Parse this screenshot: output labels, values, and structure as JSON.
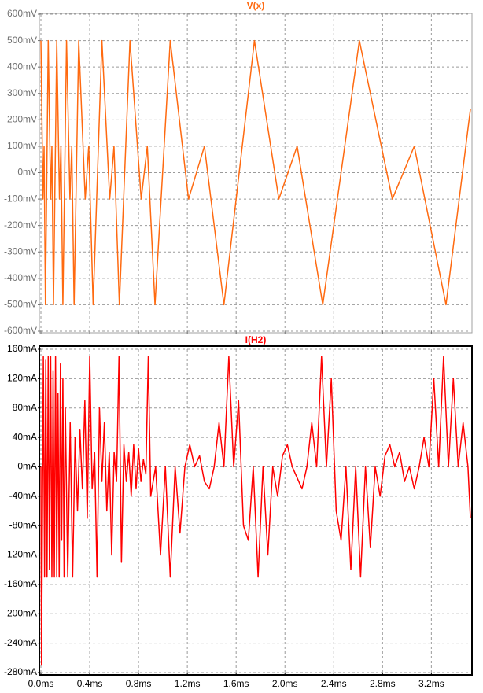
{
  "chart_data": [
    {
      "type": "line",
      "title": "V(x)",
      "grid": true,
      "xlim": [
        0,
        3.52
      ],
      "xticks": [
        0,
        0.4,
        0.8,
        1.2,
        1.6,
        2.0,
        2.4,
        2.8,
        3.2
      ],
      "ylim": [
        -600,
        600
      ],
      "yticks": [
        {
          "value": 600,
          "label": "600mV"
        },
        {
          "value": 500,
          "label": "500mV"
        },
        {
          "value": 400,
          "label": "400mV"
        },
        {
          "value": 300,
          "label": "300mV"
        },
        {
          "value": 200,
          "label": "200mV"
        },
        {
          "value": 100,
          "label": "100mV"
        },
        {
          "value": 0,
          "label": "0mV"
        },
        {
          "value": -100,
          "label": "-100mV"
        },
        {
          "value": -200,
          "label": "-200mV"
        },
        {
          "value": -300,
          "label": "-300mV"
        },
        {
          "value": -400,
          "label": "-400mV"
        },
        {
          "value": -500,
          "label": "-500mV"
        },
        {
          "value": -600,
          "label": "-600mV"
        }
      ],
      "series": [
        {
          "color": "#ff6a10",
          "x": [
            0,
            0.017,
            0.026,
            0.037,
            0.06,
            0.08,
            0.09,
            0.103,
            0.13,
            0.152,
            0.164,
            0.18,
            0.21,
            0.238,
            0.253,
            0.272,
            0.31,
            0.363,
            0.392,
            0.428,
            0.5,
            0.564,
            0.599,
            0.643,
            0.73,
            0.822,
            0.872,
            0.935,
            1.06,
            1.21,
            1.34,
            1.5,
            1.75,
            1.95,
            2.1,
            2.31,
            2.61,
            2.88,
            3.06,
            3.32,
            3.52
          ],
          "values": [
            500,
            -100,
            100,
            -500,
            500,
            -100,
            100,
            -500,
            500,
            -100,
            100,
            -500,
            500,
            -100,
            100,
            -500,
            500,
            -100,
            100,
            -500,
            500,
            -100,
            100,
            -500,
            500,
            -100,
            100,
            -500,
            500,
            -100,
            100,
            -500,
            500,
            -100,
            100,
            -500,
            500,
            -100,
            100,
            -500,
            240
          ]
        }
      ]
    },
    {
      "type": "line",
      "title": "I(H2)",
      "grid": true,
      "xlim": [
        0,
        3.52
      ],
      "xticks": [
        {
          "value": 0,
          "label": "0.0ms"
        },
        {
          "value": 0.4,
          "label": "0.4ms"
        },
        {
          "value": 0.8,
          "label": "0.8ms"
        },
        {
          "value": 1.2,
          "label": "1.2ms"
        },
        {
          "value": 1.6,
          "label": "1.6ms"
        },
        {
          "value": 2.0,
          "label": "2.0ms"
        },
        {
          "value": 2.4,
          "label": "2.4ms"
        },
        {
          "value": 2.8,
          "label": "2.8ms"
        },
        {
          "value": 3.2,
          "label": "3.2ms"
        }
      ],
      "ylim": [
        -280,
        160
      ],
      "yticks": [
        {
          "value": 160,
          "label": "160mA"
        },
        {
          "value": 120,
          "label": "120mA"
        },
        {
          "value": 80,
          "label": "80mA"
        },
        {
          "value": 40,
          "label": "40mA"
        },
        {
          "value": 0,
          "label": "0mA"
        },
        {
          "value": -40,
          "label": "-40mA"
        },
        {
          "value": -80,
          "label": "-80mA"
        },
        {
          "value": -120,
          "label": "-120mA"
        },
        {
          "value": -160,
          "label": "-160mA"
        },
        {
          "value": -200,
          "label": "-200mA"
        },
        {
          "value": -240,
          "label": "-240mA"
        },
        {
          "value": -280,
          "label": "-280mA"
        }
      ],
      "series": [
        {
          "color": "#ff0000",
          "x": [
            0,
            0.005,
            0.02,
            0.03,
            0.04,
            0.05,
            0.06,
            0.07,
            0.08,
            0.09,
            0.1,
            0.11,
            0.12,
            0.13,
            0.14,
            0.15,
            0.16,
            0.17,
            0.18,
            0.19,
            0.2,
            0.22,
            0.24,
            0.26,
            0.28,
            0.3,
            0.32,
            0.34,
            0.36,
            0.38,
            0.4,
            0.42,
            0.44,
            0.46,
            0.48,
            0.5,
            0.52,
            0.54,
            0.56,
            0.58,
            0.6,
            0.62,
            0.64,
            0.66,
            0.68,
            0.7,
            0.72,
            0.74,
            0.76,
            0.78,
            0.8,
            0.82,
            0.84,
            0.86,
            0.88,
            0.9,
            0.94,
            0.98,
            1.02,
            1.06,
            1.1,
            1.14,
            1.18,
            1.22,
            1.26,
            1.3,
            1.34,
            1.38,
            1.42,
            1.46,
            1.5,
            1.54,
            1.58,
            1.62,
            1.66,
            1.7,
            1.74,
            1.78,
            1.82,
            1.86,
            1.9,
            1.94,
            1.98,
            2.02,
            2.06,
            2.1,
            2.14,
            2.18,
            2.22,
            2.26,
            2.3,
            2.34,
            2.38,
            2.42,
            2.46,
            2.5,
            2.54,
            2.58,
            2.62,
            2.66,
            2.7,
            2.74,
            2.78,
            2.82,
            2.86,
            2.9,
            2.94,
            2.98,
            3.02,
            3.06,
            3.1,
            3.14,
            3.18,
            3.22,
            3.26,
            3.3,
            3.34,
            3.38,
            3.42,
            3.46,
            3.5,
            3.52
          ],
          "values": [
            0,
            -270,
            150,
            -150,
            145,
            -150,
            150,
            -140,
            150,
            -150,
            130,
            -150,
            150,
            -150,
            100,
            -150,
            140,
            -100,
            120,
            -150,
            80,
            -150,
            60,
            -150,
            40,
            -60,
            50,
            -30,
            90,
            -70,
            150,
            -30,
            20,
            -150,
            80,
            -20,
            60,
            -60,
            20,
            -120,
            20,
            -20,
            150,
            -130,
            30,
            -20,
            20,
            -40,
            30,
            -30,
            25,
            -20,
            10,
            -10,
            150,
            -40,
            0,
            -120,
            0,
            -150,
            0,
            -90,
            0,
            30,
            0,
            15,
            -20,
            -30,
            0,
            60,
            0,
            150,
            0,
            90,
            -80,
            -100,
            0,
            -150,
            0,
            -120,
            0,
            -40,
            15,
            30,
            0,
            -15,
            -30,
            0,
            60,
            0,
            150,
            0,
            120,
            -60,
            -100,
            0,
            -140,
            0,
            -150,
            0,
            -110,
            0,
            -40,
            15,
            30,
            0,
            20,
            -20,
            0,
            -30,
            0,
            40,
            0,
            120,
            0,
            150,
            0,
            120,
            0,
            60,
            0,
            -70
          ]
        }
      ]
    }
  ]
}
